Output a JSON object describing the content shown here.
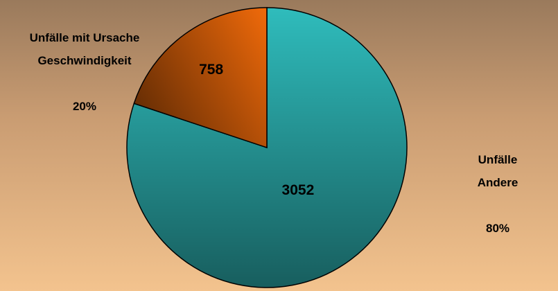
{
  "chart_data": {
    "type": "pie",
    "categories": [
      "Unfälle Andere",
      "Unfälle mit Ursache\nGeschwindigkeit"
    ],
    "values": [
      3052,
      758
    ],
    "shares": [
      80,
      20
    ],
    "share_labels": [
      "80%",
      "20%"
    ],
    "colors": [
      "#2fbcbc",
      "#f06a0a"
    ]
  }
}
